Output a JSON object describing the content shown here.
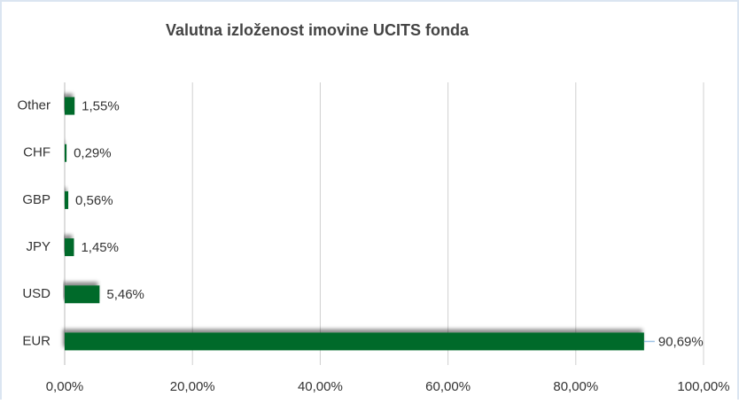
{
  "chart_data": {
    "type": "bar",
    "orientation": "horizontal",
    "title": "Valutna izloženost imovine UCITS fonda",
    "categories": [
      "Other",
      "CHF",
      "GBP",
      "JPY",
      "USD",
      "EUR"
    ],
    "values": [
      1.55,
      0.29,
      0.56,
      1.45,
      5.46,
      90.69
    ],
    "value_labels": [
      "1,55%",
      "0,29%",
      "0,56%",
      "1,45%",
      "5,46%",
      "90,69%"
    ],
    "color": "#006b2b",
    "xlim": [
      0,
      100
    ],
    "xticks": [
      {
        "value": 0,
        "label": "0,00%"
      },
      {
        "value": 20,
        "label": "20,00%"
      },
      {
        "value": 40,
        "label": "40,00%"
      },
      {
        "value": 60,
        "label": "60,00%"
      },
      {
        "value": 80,
        "label": "80,00%"
      },
      {
        "value": 100,
        "label": "100,00%"
      }
    ],
    "grid": true
  }
}
